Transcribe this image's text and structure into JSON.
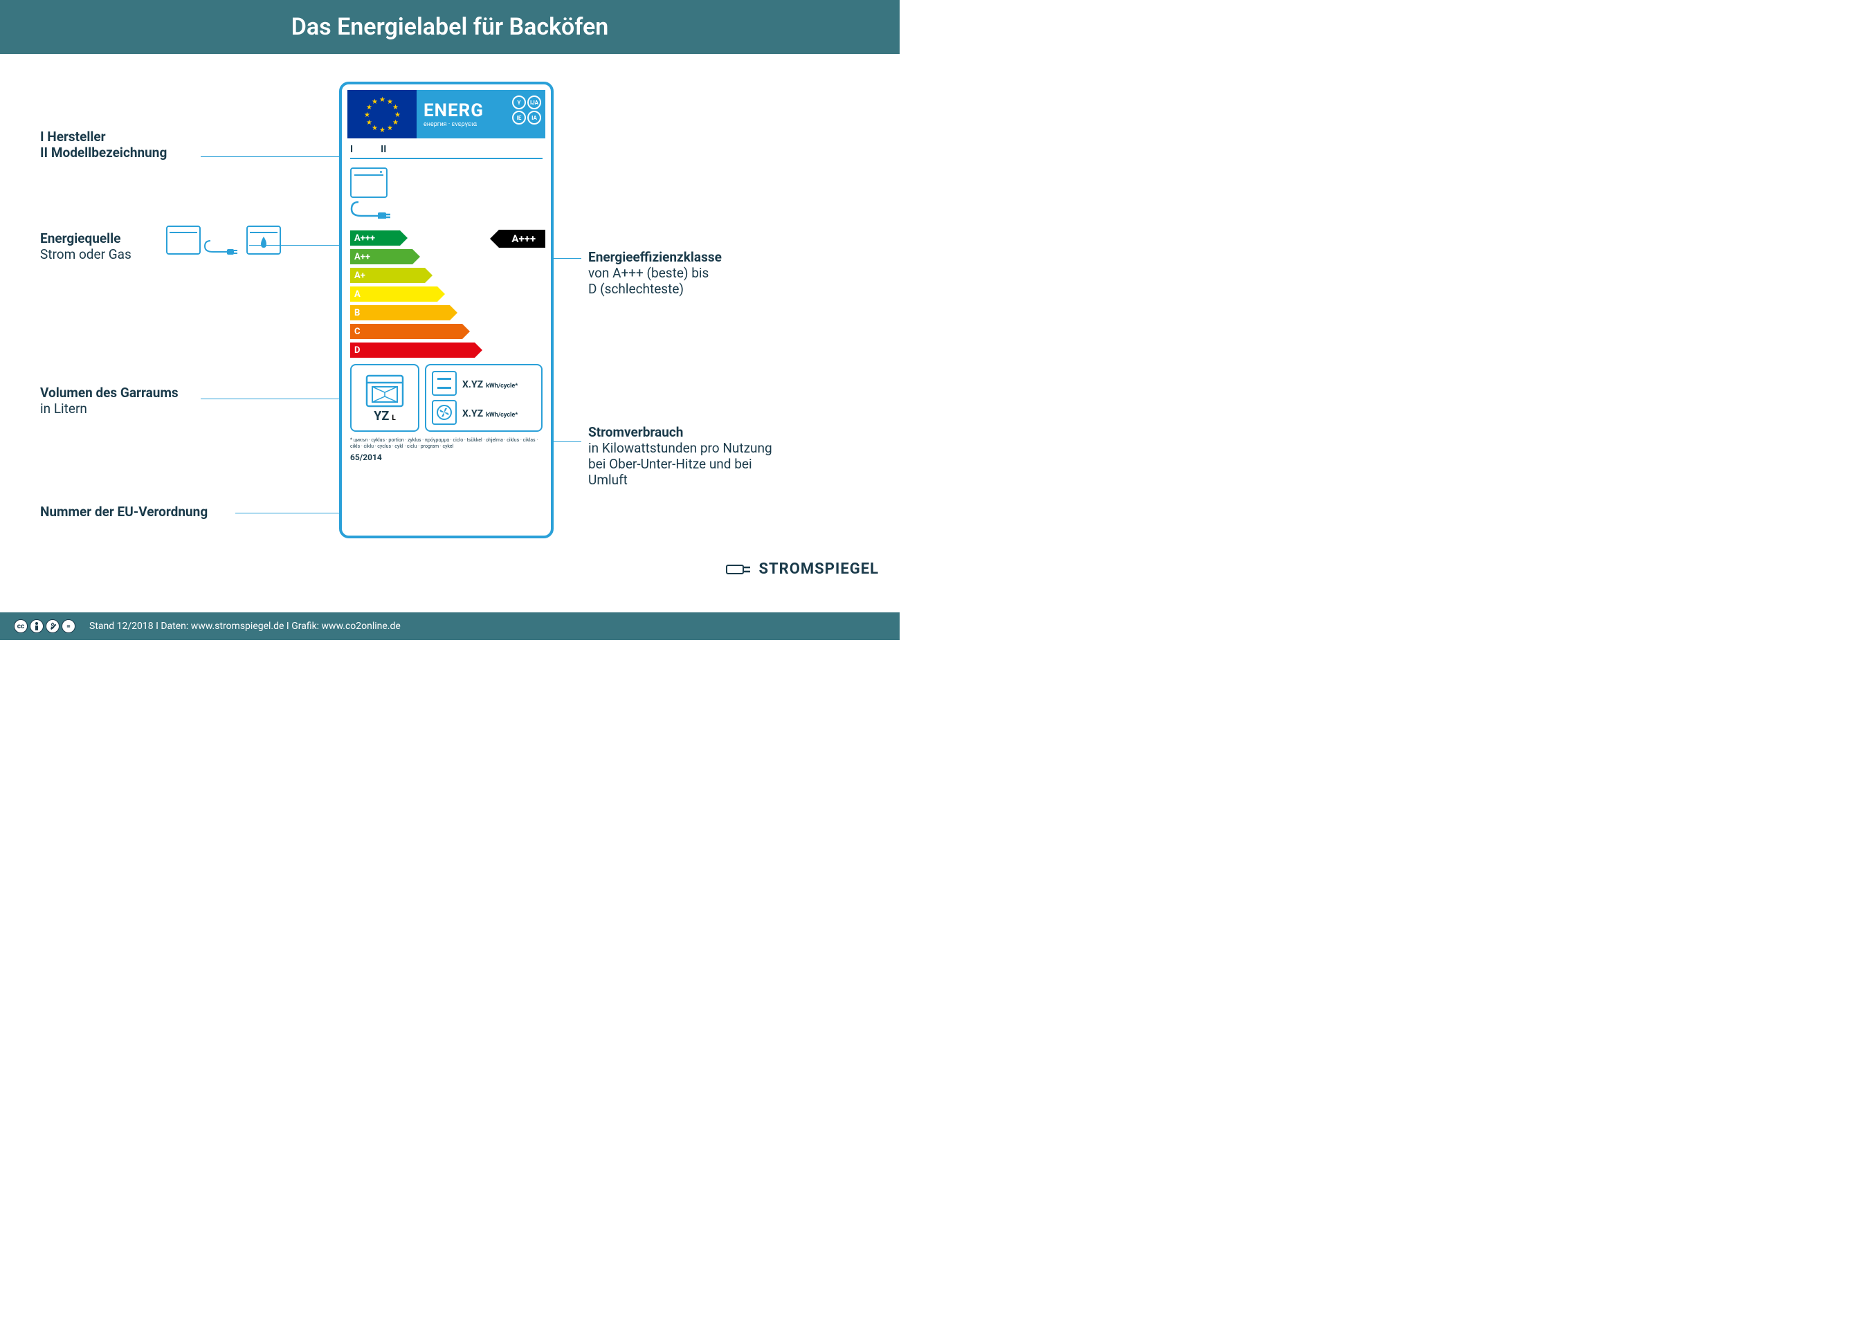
{
  "header": {
    "title": "Das Energielabel für Backöfen"
  },
  "colors": {
    "header_bg": "#3a7580",
    "accent": "#2aa0d8",
    "text": "#1a3a4a",
    "eu_blue": "#003399",
    "eu_gold": "#ffcc00"
  },
  "label": {
    "energ_title": "ENERG",
    "energ_sub": "енергия · ενεργεια",
    "codes": [
      "Y",
      "IJA",
      "IE",
      "IA"
    ],
    "model_markers": [
      "I",
      "II"
    ],
    "ratings": [
      {
        "label": "A+++",
        "color": "#009640",
        "width": 72
      },
      {
        "label": "A++",
        "color": "#52ae32",
        "width": 90
      },
      {
        "label": "A+",
        "color": "#c8d400",
        "width": 108
      },
      {
        "label": "A",
        "color": "#ffed00",
        "width": 126
      },
      {
        "label": "B",
        "color": "#fbba00",
        "width": 144
      },
      {
        "label": "C",
        "color": "#ec6608",
        "width": 162
      },
      {
        "label": "D",
        "color": "#e30613",
        "width": 180
      }
    ],
    "class_pointer": "A+++",
    "volume_value": "YZ",
    "volume_unit": "L",
    "consumption": [
      {
        "value": "X.YZ",
        "unit": "kWh/cycle*",
        "mode": "conventional"
      },
      {
        "value": "X.YZ",
        "unit": "kWh/cycle*",
        "mode": "fan"
      }
    ],
    "footnote": "* цикъл · cyklus · portion · zyklus · πρόγραμμα · ciclo · tsükkel · ohjelma · ciklus · ciklas · cikls · ċiklu · cyclus · cykl · ciclu · program · cykel",
    "regulation": "65/2014"
  },
  "annotations": {
    "manufacturer": {
      "line1": "I  Hersteller",
      "line2": "II Modellbezeichnung"
    },
    "source": {
      "title": "Energiequelle",
      "sub": "Strom oder Gas"
    },
    "volume": {
      "title": "Volumen des Garraums",
      "sub": "in Litern"
    },
    "regulation": {
      "title": "Nummer der EU-Verordnung"
    },
    "class": {
      "title": "Energieeffizienzklasse",
      "sub1": "von A+++ (beste) bis",
      "sub2": "D (schlechteste)"
    },
    "consumption": {
      "title": "Stromverbrauch",
      "sub1": "in Kilowattstunden pro Nutzung",
      "sub2": "bei Ober-Unter-Hitze und bei",
      "sub3": "Umluft"
    }
  },
  "footer": {
    "text": "Stand 12/2018   I   Daten: www.stromspiegel.de   I   Grafik: www.co2online.de",
    "cc": [
      "cc",
      "i",
      "$",
      "="
    ]
  },
  "brand": "STROMSPIEGEL"
}
